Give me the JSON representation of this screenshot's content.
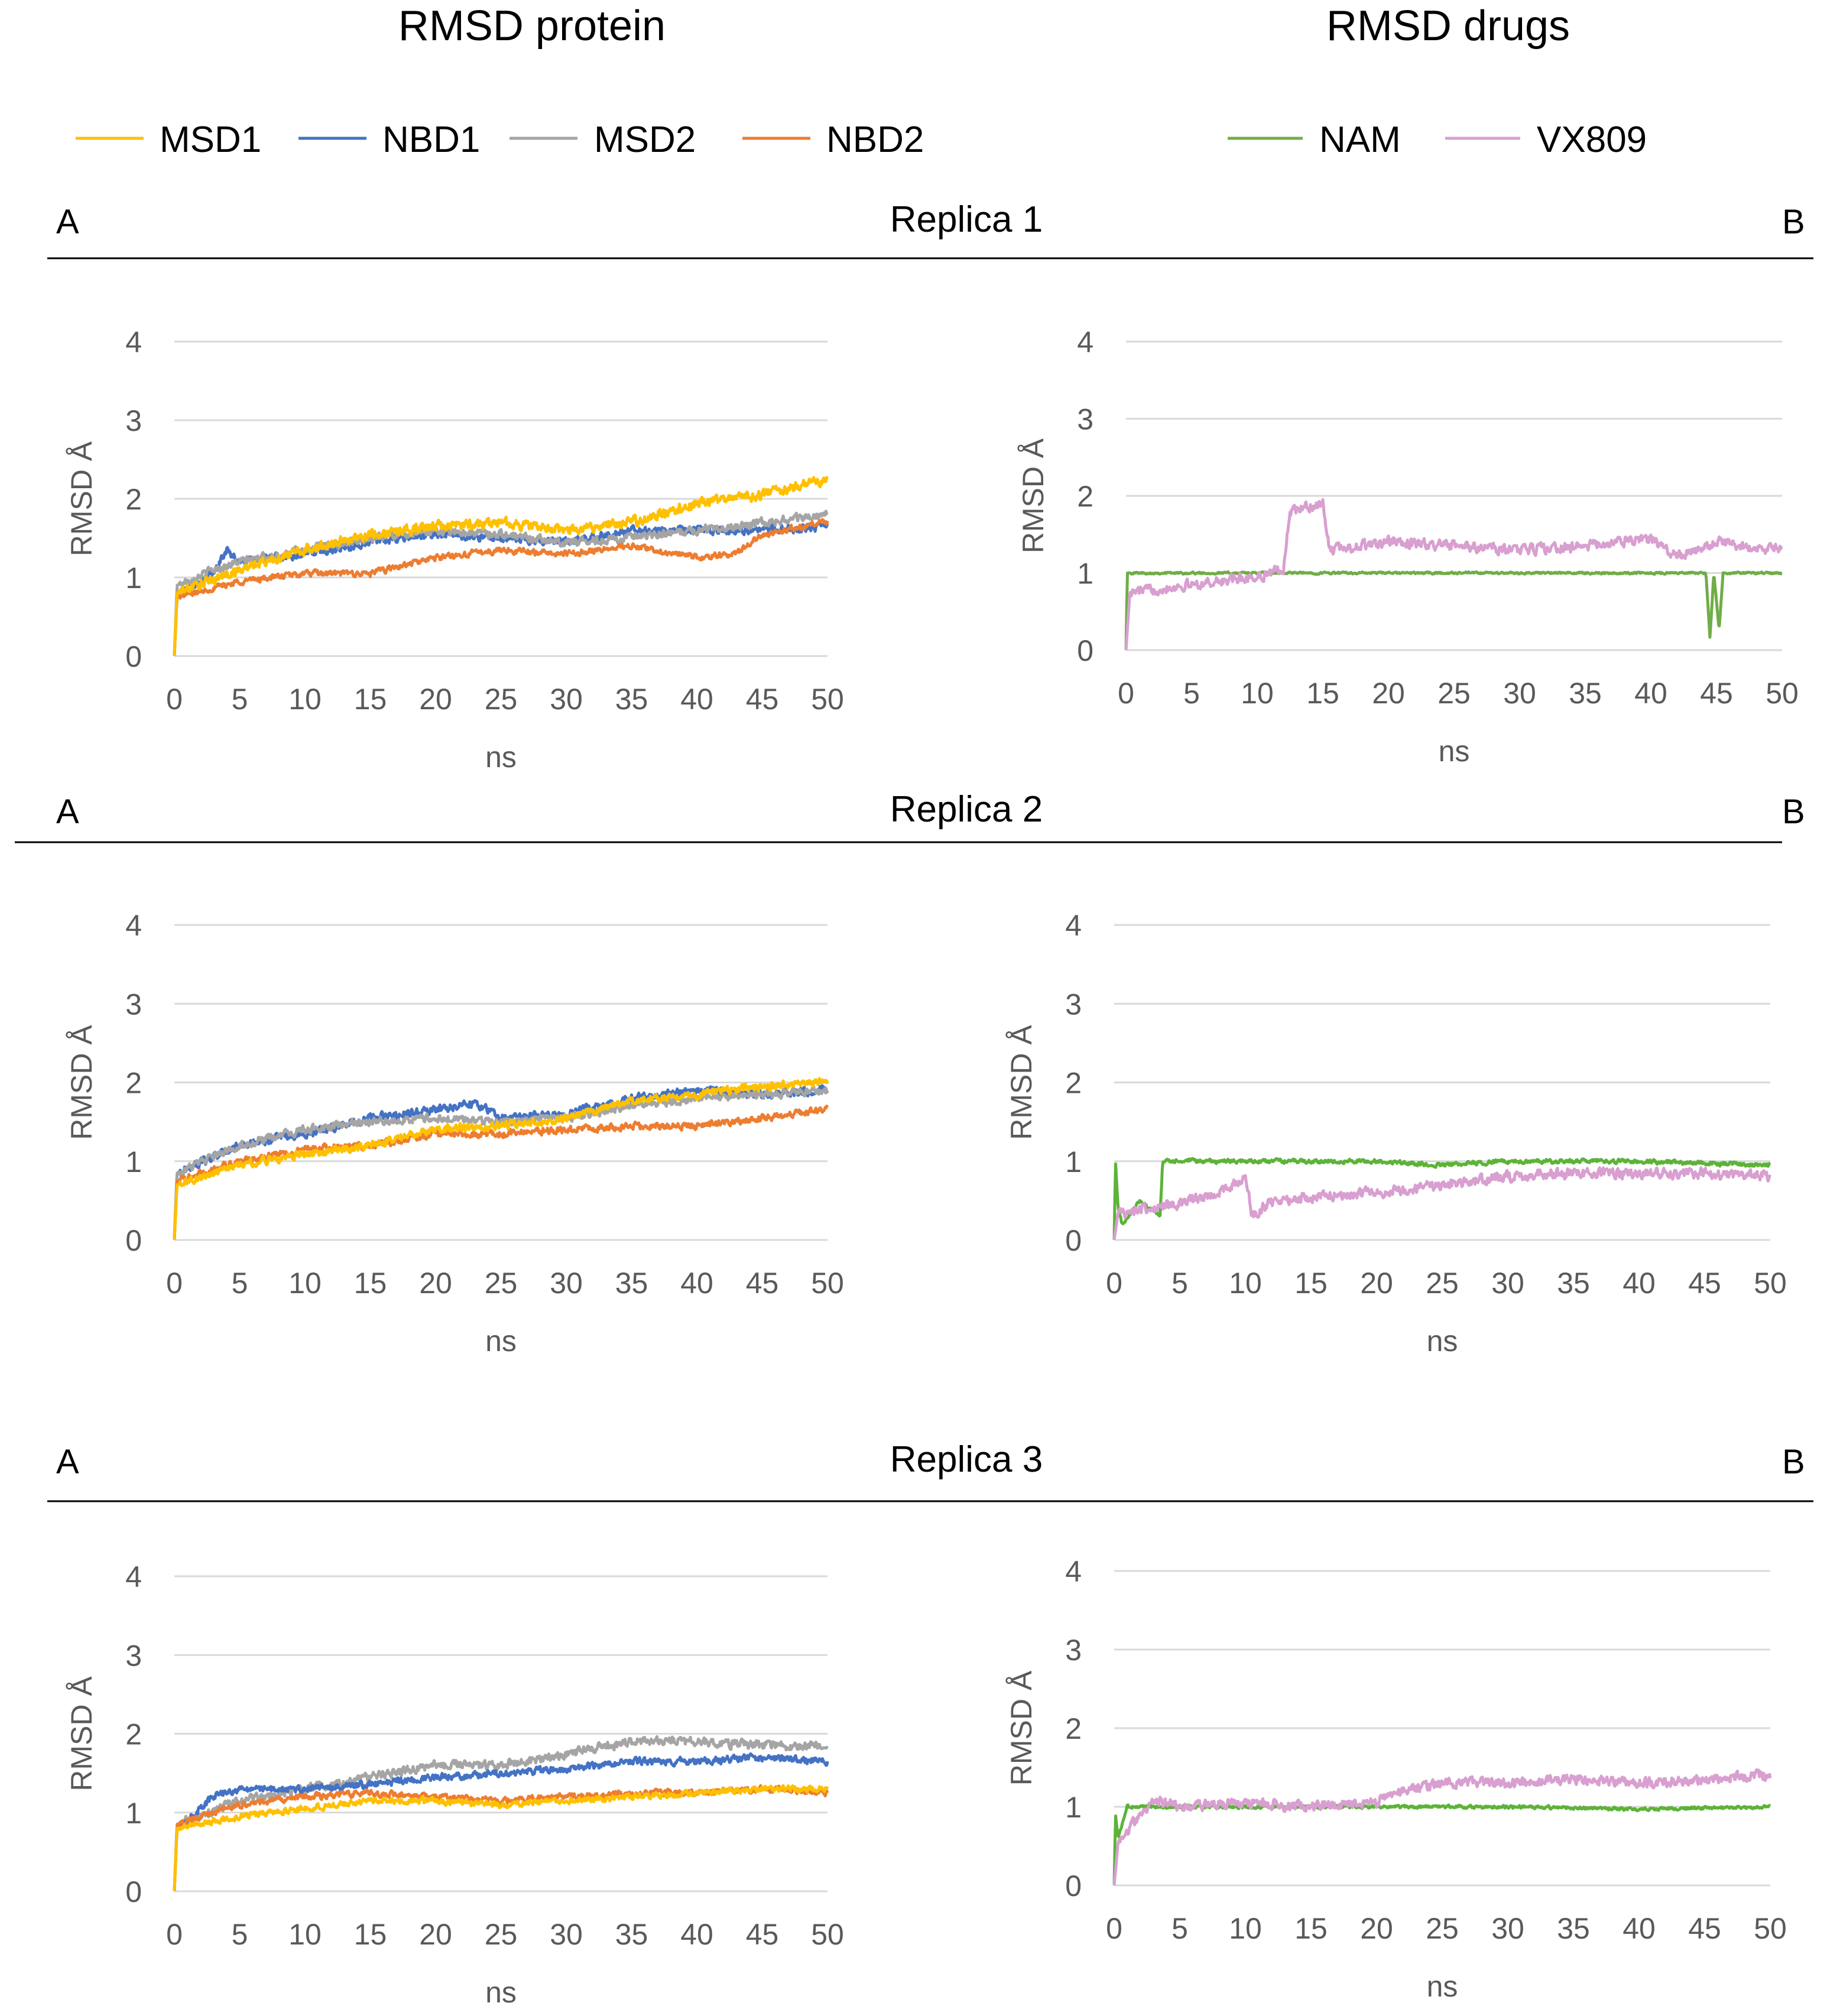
{
  "headers": {
    "left": "RMSD protein",
    "right": "RMSD drugs"
  },
  "legend": {
    "protein": [
      {
        "label": "MSD1",
        "color": "#FFC000"
      },
      {
        "label": "NBD1",
        "color": "#4472C4"
      },
      {
        "label": "MSD2",
        "color": "#A5A5A5"
      },
      {
        "label": "NBD2",
        "color": "#ED7D31"
      }
    ],
    "drugs": [
      {
        "label": "NAM",
        "color": "#70AD47"
      },
      {
        "label": "VX809",
        "color": "#D89FD0"
      }
    ]
  },
  "rows": [
    {
      "title": "Replica 1",
      "left_tag": "A",
      "right_tag": "B"
    },
    {
      "title": "Replica 2",
      "left_tag": "A",
      "right_tag": "B"
    },
    {
      "title": "Replica 3",
      "left_tag": "A",
      "right_tag": "B"
    }
  ],
  "chart_data": [
    {
      "panel": "Replica 1 - A",
      "type": "line",
      "xlabel": "ns",
      "ylabel": "RMSD Å",
      "xlim": [
        0,
        50
      ],
      "ylim": [
        0,
        4
      ],
      "xticks": [
        0,
        5,
        10,
        15,
        20,
        25,
        30,
        35,
        40,
        45,
        50
      ],
      "yticks": [
        0,
        1,
        2,
        3,
        4
      ],
      "series": [
        {
          "name": "NBD1",
          "color": "#4472C4",
          "noise": 0.08,
          "x": [
            0,
            0.2,
            3,
            4,
            5,
            10,
            15,
            20,
            25,
            30,
            35,
            40,
            45,
            50
          ],
          "y": [
            0,
            0.8,
            1.05,
            1.35,
            1.2,
            1.3,
            1.45,
            1.55,
            1.5,
            1.45,
            1.6,
            1.6,
            1.6,
            1.65
          ]
        },
        {
          "name": "MSD2",
          "color": "#A5A5A5",
          "noise": 0.08,
          "x": [
            0,
            0.2,
            3,
            5,
            10,
            15,
            20,
            25,
            30,
            35,
            40,
            45,
            50
          ],
          "y": [
            0,
            0.9,
            1.1,
            1.2,
            1.35,
            1.5,
            1.6,
            1.55,
            1.45,
            1.5,
            1.6,
            1.7,
            1.8
          ]
        },
        {
          "name": "NBD2",
          "color": "#ED7D31",
          "noise": 0.06,
          "x": [
            0,
            0.2,
            5,
            10,
            15,
            20,
            25,
            30,
            35,
            40,
            43,
            45,
            50
          ],
          "y": [
            0,
            0.75,
            0.95,
            1.05,
            1.05,
            1.25,
            1.35,
            1.3,
            1.4,
            1.25,
            1.3,
            1.55,
            1.7
          ]
        },
        {
          "name": "MSD1",
          "color": "#FFC000",
          "noise": 0.1,
          "x": [
            0,
            0.2,
            5,
            10,
            15,
            20,
            25,
            30,
            35,
            40,
            45,
            50
          ],
          "y": [
            0,
            0.8,
            1.1,
            1.35,
            1.55,
            1.65,
            1.7,
            1.6,
            1.7,
            1.95,
            2.05,
            2.25
          ]
        }
      ]
    },
    {
      "panel": "Replica 1 - B",
      "type": "line",
      "xlabel": "ns",
      "ylabel": "RMSD Å",
      "xlim": [
        0,
        50
      ],
      "ylim": [
        0,
        4
      ],
      "xticks": [
        0,
        5,
        10,
        15,
        20,
        25,
        30,
        35,
        40,
        45,
        50
      ],
      "yticks": [
        0,
        1,
        2,
        3,
        4
      ],
      "series": [
        {
          "name": "NAM",
          "color": "#70AD47",
          "noise": 0.02,
          "x": [
            0,
            0.1,
            10,
            20,
            30,
            40,
            44.2,
            44.5,
            44.8,
            45.2,
            45.5,
            50
          ],
          "y": [
            0,
            1.0,
            1.0,
            1.0,
            1.0,
            1.0,
            1.0,
            0.15,
            1.0,
            0.25,
            1.0,
            1.0
          ]
        },
        {
          "name": "VX809",
          "color": "#D89FD0",
          "noise": 0.1,
          "x": [
            0,
            0.3,
            5,
            10,
            12,
            12.5,
            15,
            15.5,
            20,
            25,
            30,
            35,
            40,
            42,
            45,
            50
          ],
          "y": [
            0,
            0.75,
            0.85,
            0.95,
            1.05,
            1.8,
            1.9,
            1.3,
            1.4,
            1.35,
            1.3,
            1.35,
            1.45,
            1.2,
            1.4,
            1.3
          ]
        }
      ]
    },
    {
      "panel": "Replica 2 - A",
      "type": "line",
      "xlabel": "ns",
      "ylabel": "RMSD Å",
      "xlim": [
        0,
        50
      ],
      "ylim": [
        0,
        4
      ],
      "xticks": [
        0,
        5,
        10,
        15,
        20,
        25,
        30,
        35,
        40,
        45,
        50
      ],
      "yticks": [
        0,
        1,
        2,
        3,
        4
      ],
      "series": [
        {
          "name": "NBD1",
          "color": "#4472C4",
          "noise": 0.08,
          "x": [
            0,
            0.2,
            5,
            10,
            15,
            20,
            23,
            25,
            30,
            35,
            40,
            45,
            50
          ],
          "y": [
            0,
            0.85,
            1.2,
            1.35,
            1.55,
            1.65,
            1.75,
            1.55,
            1.6,
            1.8,
            1.9,
            1.85,
            1.9
          ]
        },
        {
          "name": "MSD2",
          "color": "#A5A5A5",
          "noise": 0.08,
          "x": [
            0,
            0.2,
            5,
            10,
            15,
            20,
            25,
            30,
            35,
            40,
            45,
            50
          ],
          "y": [
            0,
            0.85,
            1.2,
            1.4,
            1.5,
            1.55,
            1.5,
            1.55,
            1.7,
            1.8,
            1.85,
            1.9
          ]
        },
        {
          "name": "NBD2",
          "color": "#ED7D31",
          "noise": 0.07,
          "x": [
            0,
            0.2,
            5,
            10,
            15,
            20,
            25,
            30,
            35,
            40,
            45,
            50
          ],
          "y": [
            0,
            0.75,
            1.0,
            1.15,
            1.2,
            1.35,
            1.35,
            1.4,
            1.45,
            1.45,
            1.55,
            1.65
          ]
        },
        {
          "name": "MSD1",
          "color": "#FFC000",
          "noise": 0.08,
          "x": [
            0,
            0.2,
            5,
            10,
            15,
            20,
            25,
            30,
            35,
            40,
            45,
            50
          ],
          "y": [
            0,
            0.7,
            0.95,
            1.1,
            1.2,
            1.4,
            1.45,
            1.55,
            1.75,
            1.85,
            1.95,
            2.0
          ]
        }
      ]
    },
    {
      "panel": "Replica 2 - B",
      "type": "line",
      "xlabel": "ns",
      "ylabel": "RMSD Å",
      "xlim": [
        0,
        50
      ],
      "ylim": [
        0,
        4
      ],
      "xticks": [
        0,
        5,
        10,
        15,
        20,
        25,
        30,
        35,
        40,
        45,
        50
      ],
      "yticks": [
        0,
        1,
        2,
        3,
        4
      ],
      "series": [
        {
          "name": "NAM",
          "color": "#5CB338",
          "noise": 0.04,
          "x": [
            0,
            0.1,
            0.3,
            0.6,
            2,
            3.5,
            3.7,
            10,
            20,
            25,
            30,
            40,
            50
          ],
          "y": [
            0,
            1.0,
            0.4,
            0.2,
            0.5,
            0.3,
            1.0,
            1.0,
            1.0,
            0.95,
            1.0,
            1.0,
            0.95
          ]
        },
        {
          "name": "VX809",
          "color": "#D89FD0",
          "noise": 0.1,
          "x": [
            0,
            0.3,
            5,
            8,
            10,
            10.5,
            12,
            15,
            20,
            25,
            30,
            35,
            40,
            45,
            50
          ],
          "y": [
            0,
            0.35,
            0.45,
            0.6,
            0.8,
            0.3,
            0.5,
            0.55,
            0.6,
            0.7,
            0.8,
            0.85,
            0.85,
            0.85,
            0.8
          ]
        }
      ]
    },
    {
      "panel": "Replica 3 - A",
      "type": "line",
      "xlabel": "ns",
      "ylabel": "RMSD Å",
      "xlim": [
        0,
        50
      ],
      "ylim": [
        0,
        4
      ],
      "xticks": [
        0,
        5,
        10,
        15,
        20,
        25,
        30,
        35,
        40,
        45,
        50
      ],
      "yticks": [
        0,
        1,
        2,
        3,
        4
      ],
      "series": [
        {
          "name": "MSD2",
          "color": "#A5A5A5",
          "noise": 0.09,
          "x": [
            0,
            0.2,
            5,
            10,
            15,
            20,
            25,
            30,
            35,
            40,
            45,
            50
          ],
          "y": [
            0,
            0.85,
            1.15,
            1.3,
            1.45,
            1.6,
            1.6,
            1.75,
            1.9,
            1.9,
            1.85,
            1.85
          ]
        },
        {
          "name": "NBD1",
          "color": "#4472C4",
          "noise": 0.07,
          "x": [
            0,
            0.2,
            3,
            5,
            10,
            15,
            20,
            25,
            30,
            35,
            40,
            45,
            50
          ],
          "y": [
            0,
            0.8,
            1.2,
            1.3,
            1.3,
            1.35,
            1.45,
            1.5,
            1.55,
            1.65,
            1.65,
            1.7,
            1.65
          ]
        },
        {
          "name": "NBD2",
          "color": "#ED7D31",
          "noise": 0.06,
          "x": [
            0,
            0.2,
            5,
            10,
            15,
            20,
            25,
            30,
            35,
            40,
            45,
            50
          ],
          "y": [
            0,
            0.85,
            1.1,
            1.2,
            1.25,
            1.2,
            1.15,
            1.2,
            1.25,
            1.25,
            1.3,
            1.25
          ]
        },
        {
          "name": "MSD1",
          "color": "#FFC000",
          "noise": 0.06,
          "x": [
            0,
            0.2,
            5,
            10,
            15,
            20,
            25,
            30,
            35,
            40,
            45,
            50
          ],
          "y": [
            0,
            0.8,
            0.95,
            1.05,
            1.15,
            1.15,
            1.1,
            1.15,
            1.2,
            1.25,
            1.3,
            1.3
          ]
        }
      ]
    },
    {
      "panel": "Replica 3 - B",
      "type": "line",
      "xlabel": "ns",
      "ylabel": "RMSD Å",
      "xlim": [
        0,
        50
      ],
      "ylim": [
        0,
        4
      ],
      "xticks": [
        0,
        5,
        10,
        15,
        20,
        25,
        30,
        35,
        40,
        45,
        50
      ],
      "yticks": [
        0,
        1,
        2,
        3,
        4
      ],
      "series": [
        {
          "name": "NAM",
          "color": "#5CB338",
          "noise": 0.03,
          "x": [
            0,
            0.1,
            0.3,
            1,
            10,
            20,
            30,
            40,
            50
          ],
          "y": [
            0,
            0.9,
            0.6,
            1.0,
            1.0,
            1.0,
            1.0,
            0.97,
            1.0
          ]
        },
        {
          "name": "VX809",
          "color": "#D89FD0",
          "noise": 0.1,
          "x": [
            0,
            0.3,
            3,
            5,
            10,
            15,
            20,
            22,
            25,
            30,
            35,
            40,
            45,
            50
          ],
          "y": [
            0,
            0.55,
            1.1,
            1.0,
            1.05,
            1.0,
            1.05,
            1.2,
            1.3,
            1.3,
            1.35,
            1.3,
            1.35,
            1.4
          ]
        }
      ]
    }
  ]
}
